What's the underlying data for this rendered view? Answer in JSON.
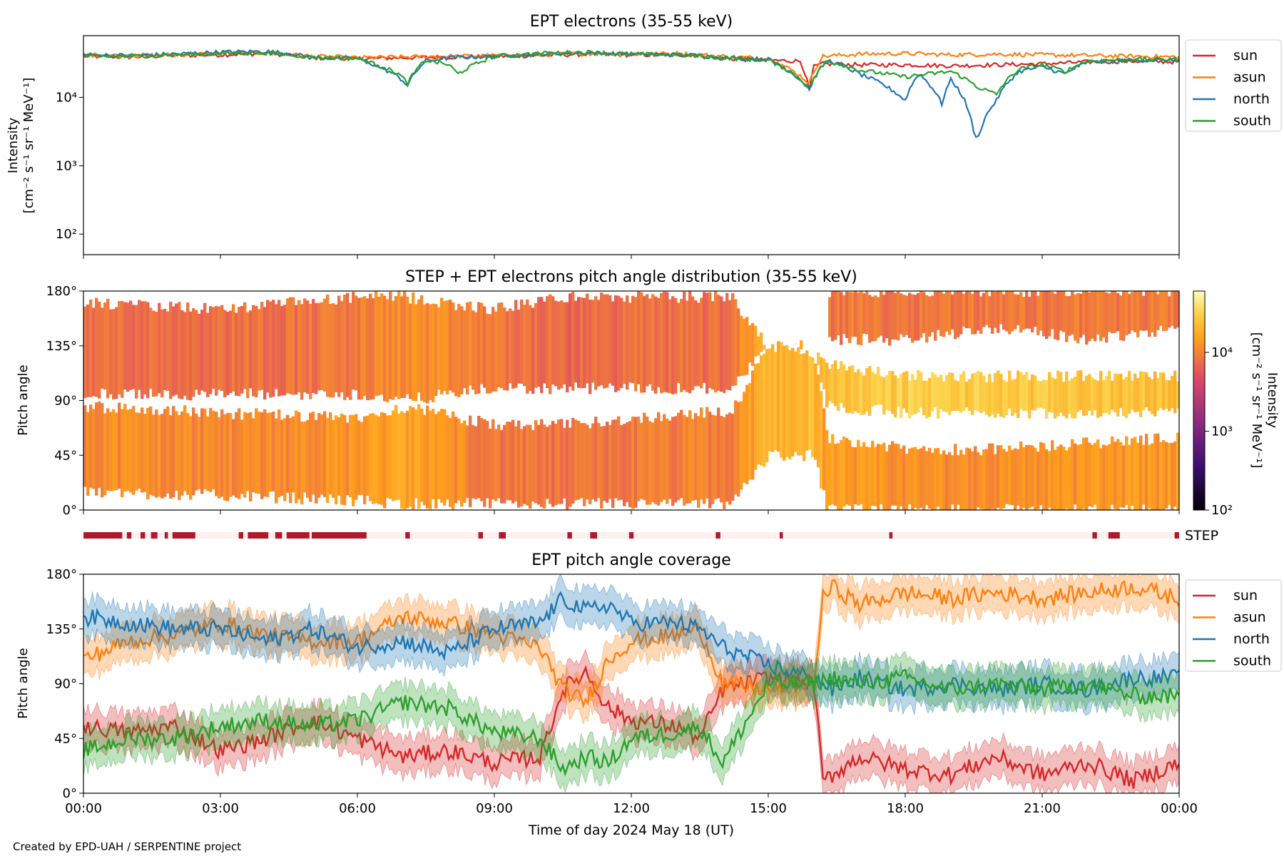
{
  "footer": "Created by EPD-UAH / SERPENTINE project",
  "colors": {
    "sun": "#d62728",
    "asun": "#ff7f0e",
    "north": "#1f77b4",
    "south": "#2ca02c",
    "step": "#b2182b",
    "step_bg": "#fdf0ed"
  },
  "chart_data": [
    {
      "type": "line",
      "title": "EPT electrons (35-55 keV)",
      "ylabel": [
        "Intensity",
        "[cm⁻² s⁻¹ sr⁻¹ MeV⁻¹]"
      ],
      "yscale": "log",
      "ylim": [
        50,
        80000
      ],
      "yticks": [
        100,
        1000,
        10000
      ],
      "ytick_labels": [
        "10²",
        "10³",
        "10⁴"
      ],
      "xlim": [
        "2024-05-18 00:00",
        "2024-05-19 00:00"
      ],
      "legend_position": "outside-right-top",
      "series": [
        {
          "name": "sun",
          "x": [
            0,
            1,
            2,
            3,
            4,
            4.5,
            5,
            6,
            7,
            8,
            9,
            10,
            11,
            12,
            13,
            13.5,
            14,
            15,
            15.7,
            15.9,
            16,
            16.2,
            17,
            18,
            19,
            20,
            21,
            22,
            23,
            24
          ],
          "y": [
            40000,
            39000,
            41000,
            42000,
            44000,
            42000,
            38000,
            37000,
            38000,
            39000,
            40000,
            41000,
            43000,
            42000,
            42000,
            41000,
            37000,
            35000,
            34000,
            12000,
            28000,
            31000,
            30000,
            30000,
            29000,
            30000,
            31000,
            33000,
            34000,
            33000
          ]
        },
        {
          "name": "asun",
          "x": [
            0,
            1,
            2,
            3,
            4,
            5,
            6,
            7,
            8,
            9,
            10,
            11,
            12,
            13,
            14,
            15,
            15.9,
            16.2,
            17,
            18,
            19,
            20,
            21,
            22,
            23,
            24
          ],
          "y": [
            42000,
            41000,
            42000,
            44000,
            45000,
            40000,
            38000,
            39000,
            40000,
            41000,
            42000,
            44000,
            43000,
            44000,
            40000,
            37000,
            16000,
            40000,
            43000,
            44000,
            42000,
            43000,
            42000,
            41000,
            40000,
            39000
          ]
        },
        {
          "name": "north",
          "x": [
            0,
            1,
            2,
            3,
            4,
            4.5,
            5,
            6,
            6.9,
            7.1,
            7.5,
            8,
            9,
            10,
            11,
            12,
            13,
            13.5,
            14,
            15,
            15.9,
            16.3,
            17,
            18,
            18.3,
            18.8,
            19,
            19.5,
            19.6,
            20,
            20.5,
            21,
            21.5,
            22,
            23,
            24
          ],
          "y": [
            42000,
            41000,
            43000,
            46000,
            47000,
            44000,
            38000,
            37000,
            20000,
            15000,
            34000,
            38000,
            40000,
            43000,
            45000,
            43000,
            42000,
            41000,
            38000,
            36000,
            13000,
            35000,
            22000,
            9000,
            22000,
            8000,
            18000,
            3000,
            2600,
            9000,
            24000,
            28000,
            22000,
            33000,
            35000,
            35000
          ]
        },
        {
          "name": "south",
          "x": [
            0,
            1,
            2,
            3,
            4,
            5,
            6,
            6.9,
            7.1,
            7.5,
            8,
            8.2,
            9,
            10,
            11,
            12,
            13,
            14,
            15,
            15.9,
            16.3,
            17,
            18,
            19,
            19.6,
            20,
            20.5,
            21,
            21.5,
            22,
            23,
            24
          ],
          "y": [
            40000,
            40000,
            42000,
            44000,
            45000,
            39000,
            37000,
            22000,
            16000,
            35000,
            30000,
            22000,
            40000,
            44000,
            46000,
            43000,
            42000,
            38000,
            35000,
            14000,
            34000,
            25000,
            20000,
            24000,
            14000,
            11000,
            26000,
            30000,
            24000,
            34000,
            36000,
            36000
          ]
        }
      ]
    },
    {
      "type": "heatmap",
      "title": "STEP + EPT electrons pitch angle distribution (35-55 keV)",
      "ylabel": "Pitch angle",
      "ylim": [
        0,
        180
      ],
      "yticks": [
        0,
        45,
        90,
        135,
        180
      ],
      "ytick_labels": [
        "0°",
        "45°",
        "90°",
        "135°",
        "180°"
      ],
      "colorbar": {
        "label": [
          "Intensity",
          "[cm⁻² s⁻¹ sr⁻¹ MeV⁻¹]"
        ],
        "scale": "log",
        "range": [
          100,
          60000
        ],
        "ticks": [
          100,
          1000,
          10000
        ],
        "tick_labels": [
          "10²",
          "10³",
          "10⁴"
        ],
        "colormap": "inferno-like (dark purple → red → orange → pale yellow)"
      },
      "bands": [
        {
          "x": [
            0,
            3,
            6,
            7,
            9,
            10.5,
            12,
            13.5,
            14.2,
            15,
            16,
            16.3,
            18,
            20,
            22,
            24
          ],
          "pa_low": [
            15,
            12,
            8,
            5,
            5,
            5,
            5,
            5,
            5,
            45,
            45,
            0,
            0,
            0,
            0,
            0
          ],
          "pa_high": [
            85,
            80,
            75,
            85,
            70,
            70,
            75,
            80,
            80,
            135,
            130,
            60,
            50,
            50,
            55,
            60
          ],
          "intensity": [
            12000,
            11000,
            13000,
            16000,
            9000,
            8000,
            9000,
            10000,
            9000,
            20000,
            22000,
            14000,
            12000,
            12000,
            13000,
            14000
          ]
        },
        {
          "x": [
            0,
            3,
            6,
            7,
            9,
            10.5,
            12,
            13.5,
            14.2,
            15,
            16,
            16.3,
            18,
            20,
            22,
            24
          ],
          "pa_low": [
            95,
            95,
            95,
            90,
            100,
            100,
            100,
            100,
            100,
            135,
            135,
            85,
            80,
            80,
            80,
            80
          ],
          "pa_high": [
            170,
            165,
            175,
            175,
            165,
            175,
            175,
            175,
            175,
            135,
            135,
            120,
            110,
            110,
            110,
            110
          ],
          "intensity": [
            8000,
            8000,
            9000,
            12000,
            9000,
            7000,
            8000,
            8000,
            8000,
            20000,
            20000,
            25000,
            30000,
            28000,
            26000,
            24000
          ]
        },
        {
          "x": [
            16.3,
            18,
            20,
            22,
            24
          ],
          "pa_low": [
            140,
            140,
            150,
            140,
            150
          ],
          "pa_high": [
            180,
            180,
            180,
            180,
            180
          ],
          "intensity": [
            9000,
            9000,
            9000,
            9000,
            9000
          ]
        }
      ]
    },
    {
      "type": "bar",
      "label": "STEP",
      "description_of_marks": "STEP availability intervals",
      "intervals": [
        [
          0.0,
          0.85
        ],
        [
          0.95,
          1.05
        ],
        [
          1.25,
          1.35
        ],
        [
          1.48,
          1.62
        ],
        [
          1.78,
          1.85
        ],
        [
          1.95,
          2.45
        ],
        [
          3.4,
          3.5
        ],
        [
          3.6,
          4.05
        ],
        [
          4.2,
          4.35
        ],
        [
          4.45,
          4.95
        ],
        [
          5.0,
          6.2
        ],
        [
          7.05,
          7.15
        ],
        [
          8.65,
          8.75
        ],
        [
          9.1,
          9.25
        ],
        [
          10.6,
          10.7
        ],
        [
          11.1,
          11.25
        ],
        [
          11.95,
          12.05
        ],
        [
          13.85,
          13.95
        ],
        [
          15.25,
          15.32
        ],
        [
          17.65,
          17.72
        ],
        [
          22.1,
          22.2
        ],
        [
          22.45,
          22.7
        ],
        [
          23.9,
          24.0
        ]
      ]
    },
    {
      "type": "line",
      "title": "EPT pitch angle coverage",
      "ylabel": "Pitch angle",
      "xlabel": "Time of day 2024 May 18 (UT)",
      "ylim": [
        0,
        180
      ],
      "yticks": [
        0,
        45,
        90,
        135,
        180
      ],
      "ytick_labels": [
        "0°",
        "45°",
        "90°",
        "135°",
        "180°"
      ],
      "xlim": [
        "2024-05-18 00:00",
        "2024-05-19 00:00"
      ],
      "xticks": [
        0,
        3,
        6,
        9,
        12,
        15,
        18,
        21,
        24
      ],
      "xtick_labels": [
        "00:00",
        "03:00",
        "06:00",
        "09:00",
        "12:00",
        "15:00",
        "18:00",
        "21:00",
        "00:00"
      ],
      "legend_position": "outside-right-top",
      "band_halfwidth": 15,
      "series": [
        {
          "name": "sun",
          "x": [
            0,
            1,
            2,
            3,
            4,
            5,
            6,
            7,
            8,
            9,
            10,
            10.5,
            11,
            11.5,
            12,
            13,
            13.5,
            14,
            15,
            16,
            16.2,
            16.4,
            17,
            18,
            19,
            20,
            21,
            22,
            23,
            24
          ],
          "y": [
            55,
            50,
            55,
            35,
            45,
            60,
            45,
            30,
            35,
            25,
            30,
            85,
            100,
            70,
            60,
            55,
            45,
            85,
            95,
            90,
            10,
            15,
            30,
            20,
            15,
            30,
            15,
            25,
            10,
            25
          ]
        },
        {
          "name": "asun",
          "x": [
            0,
            1,
            2,
            3,
            4,
            5,
            6,
            7,
            8,
            9,
            10,
            10.5,
            11,
            11.5,
            12,
            13,
            13.5,
            14,
            15,
            16,
            16.2,
            16.4,
            17,
            18,
            19,
            20,
            21,
            22,
            23,
            24
          ],
          "y": [
            110,
            125,
            130,
            140,
            130,
            125,
            125,
            145,
            140,
            130,
            120,
            85,
            75,
            110,
            125,
            130,
            135,
            90,
            85,
            90,
            160,
            170,
            155,
            165,
            160,
            165,
            160,
            165,
            170,
            160
          ]
        },
        {
          "name": "north",
          "x": [
            0,
            1,
            2,
            3,
            4,
            5,
            6,
            7,
            8,
            9,
            10,
            10.5,
            11,
            11.5,
            12,
            13,
            13.5,
            14,
            15,
            16,
            16.4,
            17,
            18,
            19,
            20,
            21,
            22,
            23,
            24
          ],
          "y": [
            145,
            140,
            135,
            135,
            125,
            135,
            120,
            125,
            115,
            135,
            140,
            160,
            150,
            155,
            140,
            140,
            135,
            120,
            105,
            95,
            85,
            95,
            85,
            90,
            85,
            90,
            85,
            95,
            95
          ]
        },
        {
          "name": "south",
          "x": [
            0,
            1,
            2,
            3,
            4,
            5,
            6,
            7,
            8,
            9,
            10,
            10.5,
            11,
            11.5,
            12,
            13,
            13.5,
            14,
            15,
            16,
            16.4,
            17,
            18,
            19,
            20,
            21,
            22,
            23,
            24
          ],
          "y": [
            35,
            45,
            45,
            55,
            60,
            55,
            60,
            75,
            70,
            50,
            45,
            20,
            30,
            25,
            45,
            50,
            55,
            25,
            90,
            90,
            95,
            90,
            95,
            85,
            90,
            85,
            90,
            80,
            80
          ]
        }
      ]
    }
  ]
}
